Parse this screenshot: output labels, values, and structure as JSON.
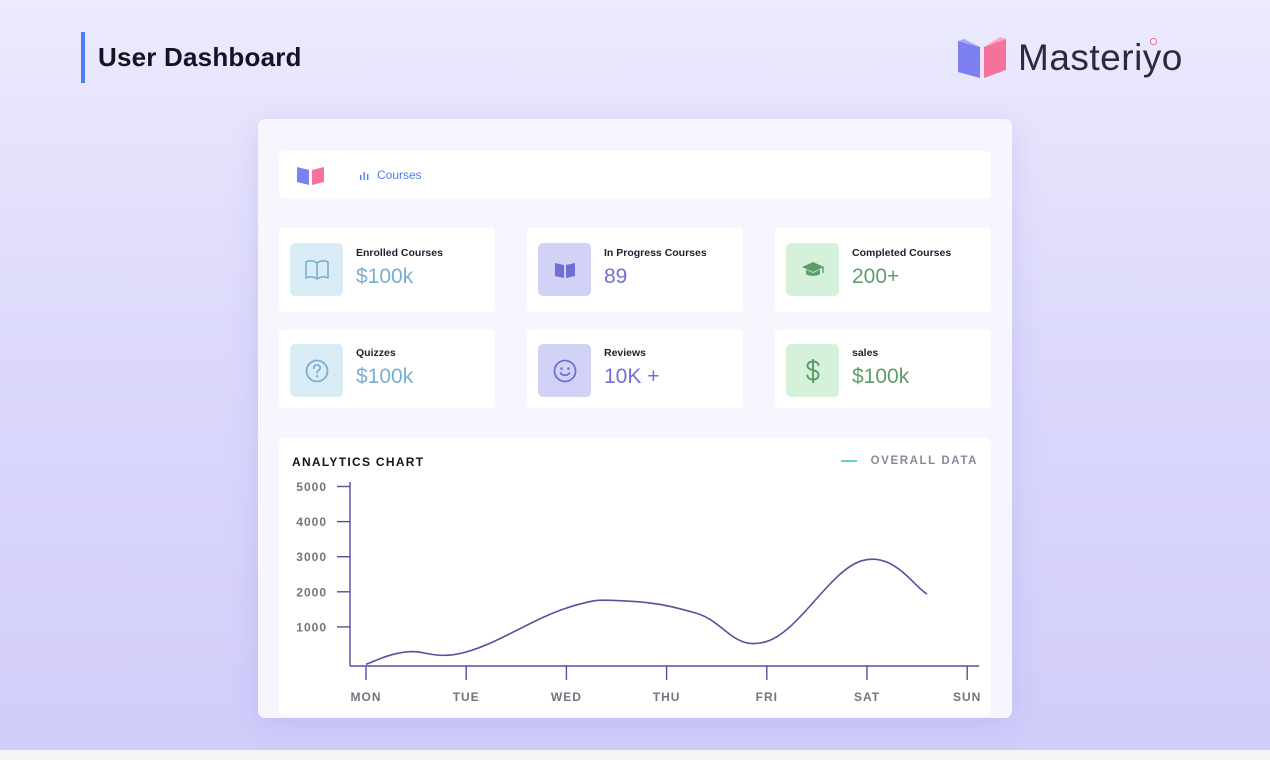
{
  "page": {
    "title": "User Dashboard"
  },
  "brand": {
    "name": "Masteriyo"
  },
  "topbar": {
    "nav_courses_label": "Courses"
  },
  "stats": [
    {
      "label": "Enrolled Courses",
      "value": "$100k",
      "icon": "open-book-icon",
      "color": "#7aaed0"
    },
    {
      "label": "In Progress Courses",
      "value": "89",
      "icon": "reading-book-icon",
      "color": "#6f6fd8"
    },
    {
      "label": "Completed Courses",
      "value": "200+",
      "icon": "graduation-cap-icon",
      "color": "#5e9c6a"
    },
    {
      "label": "Quizzes",
      "value": "$100k",
      "icon": "question-circle-icon",
      "color": "#7aaed0"
    },
    {
      "label": "Reviews",
      "value": "10K +",
      "icon": "smiley-face-icon",
      "color": "#6f6fd8"
    },
    {
      "label": "sales",
      "value": "$100k",
      "icon": "dollar-sign-icon",
      "color": "#5e9c6a"
    }
  ],
  "chart": {
    "title": "ANALYTICS CHART",
    "legend_label": "OVERALL DATA"
  },
  "chart_data": {
    "type": "line",
    "title": "ANALYTICS CHART",
    "xlabel": "",
    "ylabel": "",
    "categories": [
      "MON",
      "TUE",
      "WED",
      "THU",
      "FRI",
      "SAT",
      "SUN"
    ],
    "yticks": [
      1000,
      2000,
      3000,
      4000,
      5000
    ],
    "ylim": [
      0,
      5000
    ],
    "series": [
      {
        "name": "OVERALL DATA",
        "points": [
          {
            "x": 0,
            "y": 50
          },
          {
            "x": 0.4,
            "y": 400
          },
          {
            "x": 1,
            "y": 400
          },
          {
            "x": 2,
            "y": 1650
          },
          {
            "x": 2.6,
            "y": 1850
          },
          {
            "x": 3.3,
            "y": 1500
          },
          {
            "x": 4,
            "y": 700
          },
          {
            "x": 4.95,
            "y": 3000
          },
          {
            "x": 5.6,
            "y": 2050
          }
        ],
        "color": "#5b4e9a"
      }
    ],
    "legend": "top-right",
    "grid": false
  }
}
